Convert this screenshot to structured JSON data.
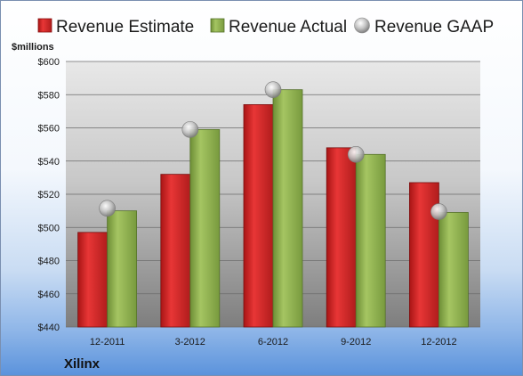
{
  "chart_data": {
    "type": "bar",
    "categories": [
      "12-2011",
      "3-2012",
      "6-2012",
      "9-2012",
      "12-2012"
    ],
    "series": [
      {
        "name": "Revenue Estimate",
        "type": "bar",
        "values": [
          497,
          532,
          574,
          548,
          527
        ],
        "color": "#d42a2a"
      },
      {
        "name": "Revenue Actual",
        "type": "bar",
        "values": [
          510,
          559,
          583,
          544,
          509
        ],
        "color": "#8ab04a"
      },
      {
        "name": "Revenue GAAP",
        "type": "marker",
        "values": [
          511.5,
          559,
          583,
          544,
          509.5
        ],
        "color": "#c8c8c8"
      }
    ],
    "ylabel": "$millions",
    "ylim": [
      440,
      600
    ],
    "yticks": [
      440,
      460,
      480,
      500,
      520,
      540,
      560,
      580,
      600
    ],
    "ytick_labels": [
      "$440",
      "$460",
      "$480",
      "$500",
      "$520",
      "$540",
      "$560",
      "$580",
      "$600"
    ],
    "grid": true,
    "legend_position": "top"
  },
  "company": "Xilinx"
}
